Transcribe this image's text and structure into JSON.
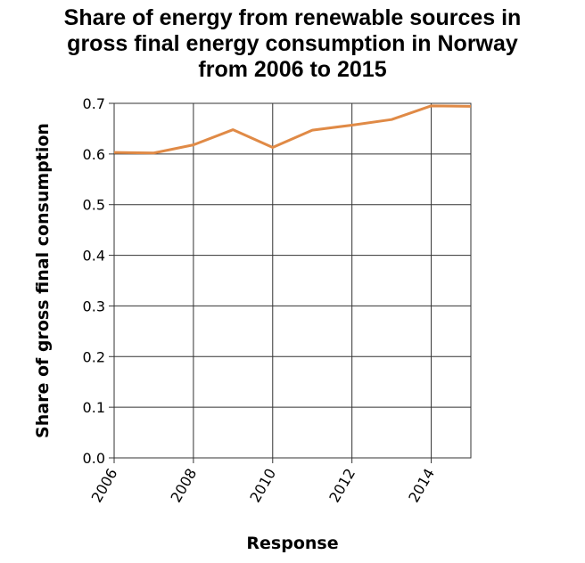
{
  "chart_data": {
    "type": "line",
    "title_lines": [
      "Share of energy from renewable sources in",
      "gross final energy consumption in Norway",
      "from 2006 to 2015"
    ],
    "xlabel": "Response",
    "ylabel": "Share of gross final consumption",
    "x_ticks": [
      "2006",
      "2008",
      "2010",
      "2012",
      "2014"
    ],
    "y_ticks": [
      "0.0",
      "0.1",
      "0.2",
      "0.3",
      "0.4",
      "0.5",
      "0.6",
      "0.7"
    ],
    "xlim": [
      2006,
      2015
    ],
    "ylim": [
      0,
      0.7
    ],
    "grid": true,
    "line_color": "#e08a46",
    "series": [
      {
        "x": [
          2006,
          2007,
          2008,
          2009,
          2010,
          2011,
          2012,
          2013,
          2014,
          2015
        ],
        "values": [
          0.603,
          0.602,
          0.618,
          0.648,
          0.613,
          0.647,
          0.657,
          0.668,
          0.695,
          0.694
        ]
      }
    ]
  }
}
